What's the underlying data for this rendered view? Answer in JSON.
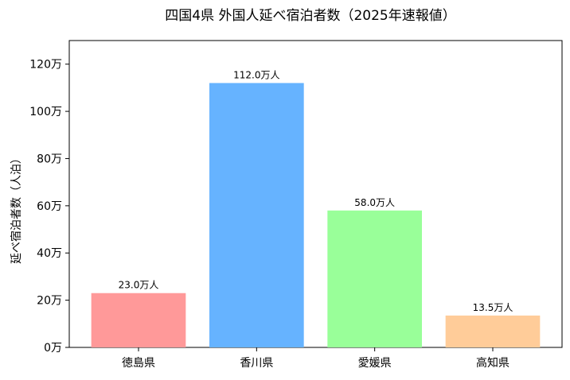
{
  "chart_data": {
    "type": "bar",
    "title": "四国4県 外国人延べ宿泊者数（2025年速報値）",
    "xlabel": "",
    "ylabel": "延べ宿泊者数（人泊）",
    "categories": [
      "徳島県",
      "香川県",
      "愛媛県",
      "高知県"
    ],
    "values": [
      23.0,
      112.0,
      58.0,
      13.5
    ],
    "data_labels": [
      "23.0万人",
      "112.0万人",
      "58.0万人",
      "13.5万人"
    ],
    "colors": [
      "#ff9999",
      "#66b3ff",
      "#99ff99",
      "#ffcc99"
    ],
    "unit": "万人",
    "ylim": [
      0,
      130
    ],
    "yticks": [
      0,
      20,
      40,
      60,
      80,
      100,
      120
    ],
    "ytick_labels": [
      "0万",
      "20万",
      "40万",
      "60万",
      "80万",
      "100万",
      "120万"
    ],
    "grid": false,
    "legend": "none"
  }
}
